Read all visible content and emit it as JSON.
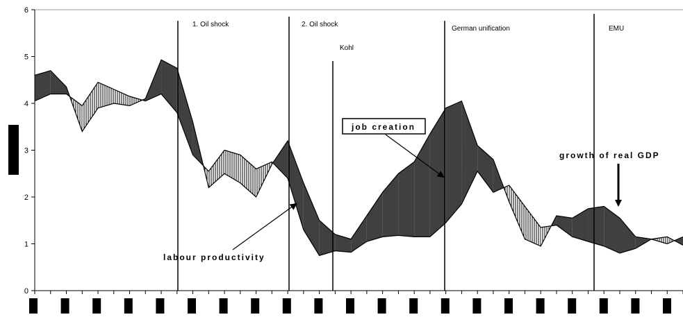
{
  "chart_data": {
    "type": "line",
    "categories": [
      null,
      null,
      null,
      null,
      null,
      null,
      null,
      null,
      null,
      null,
      null,
      null,
      null,
      null,
      null,
      null,
      null,
      null,
      null,
      null,
      null,
      null,
      null,
      null,
      null,
      null,
      null,
      null,
      null,
      null,
      null,
      null,
      null,
      null,
      null,
      null,
      null,
      null,
      null,
      null,
      null,
      null
    ],
    "series": [
      {
        "name": "growth of real GDP",
        "color": "#000000",
        "values": [
          4.6,
          4.7,
          4.35,
          3.4,
          3.9,
          4.0,
          3.95,
          4.1,
          4.93,
          4.75,
          3.6,
          2.2,
          2.5,
          2.3,
          2.0,
          2.7,
          3.2,
          2.3,
          1.5,
          1.2,
          1.1,
          1.6,
          2.1,
          2.5,
          2.75,
          3.35,
          3.9,
          4.05,
          3.1,
          2.8,
          1.9,
          1.1,
          0.95,
          1.6,
          1.55,
          1.75,
          1.8,
          1.55,
          1.15,
          1.1,
          1.0,
          1.15
        ]
      },
      {
        "name": "labour productivity",
        "color": "#000000",
        "values": [
          4.05,
          4.2,
          4.2,
          3.95,
          4.45,
          4.3,
          4.15,
          4.05,
          4.2,
          3.8,
          2.9,
          2.55,
          3.0,
          2.9,
          2.6,
          2.75,
          2.4,
          1.3,
          0.75,
          0.85,
          0.82,
          1.05,
          1.15,
          1.18,
          1.15,
          1.15,
          1.45,
          1.85,
          2.55,
          2.1,
          2.25,
          1.8,
          1.35,
          1.4,
          1.15,
          1.05,
          0.95,
          0.8,
          0.9,
          1.1,
          1.15,
          0.97
        ]
      }
    ],
    "ylim": [
      0,
      6
    ],
    "yticks": [
      0,
      1,
      2,
      3,
      4,
      5,
      6
    ],
    "events": [
      "1. Oil shock",
      "2. Oil shock",
      "Kohl",
      "German unification",
      "EMU"
    ],
    "annotations": [
      "job creation",
      "labour productivity",
      "growth of real GDP"
    ]
  }
}
